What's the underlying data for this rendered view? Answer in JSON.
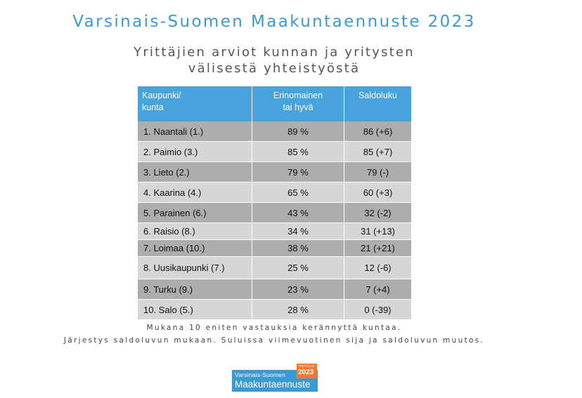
{
  "title": "Varsinais-Suomen Maakuntaennuste 2023",
  "subtitle": {
    "line1": "Yrittäjien arviot kunnan ja yritysten",
    "line2": "välisestä yhteistyöstä"
  },
  "table": {
    "headers": {
      "municipality": [
        "Kaupunki/",
        "kunta"
      ],
      "rating": [
        "Erinomainen",
        "tai hyvä"
      ],
      "balance": [
        "Saldoluku"
      ]
    },
    "rows": [
      {
        "name": "1. Naantali (1.)",
        "share": "89 %",
        "balance": "86 (+6)"
      },
      {
        "name": "2. Paimio (3.)",
        "share": "85 %",
        "balance": "85 (+7)"
      },
      {
        "name": "3. Lieto (2.)",
        "share": "79 %",
        "balance": "79 (-)"
      },
      {
        "name": "4. Kaarina (4.)",
        "share": "65 %",
        "balance": "60 (+3)"
      },
      {
        "name": "5. Parainen (6.)",
        "share": "43 %",
        "balance": "32 (-2)"
      },
      {
        "name": "6. Raisio (8.)",
        "share": "34 %",
        "balance": "31 (+13)"
      },
      {
        "name": "7. Loimaa (10.)",
        "share": "38 %",
        "balance": "21 (+21)"
      },
      {
        "name": "8. Uusikaupunki (7.)",
        "share": "25 %",
        "balance": "12 (-6)"
      },
      {
        "name": "9. Turku (9.)",
        "share": "23 %",
        "balance": "7 (+4)"
      },
      {
        "name": "10. Salo (5.)",
        "share": "28 %",
        "balance": "0 (-39)"
      }
    ]
  },
  "notes": {
    "line1": "Mukana 10 eniten vastauksia kerännyttä kuntaa.",
    "line2": "Järjestys saldoluvun mukaan. Suluissa viimevuotinen sija ja saldoluvun muutos."
  },
  "logo": {
    "top_line": "Varsinais-Suomen",
    "main_line": "Maakuntaennuste",
    "badge_caption": "YRITTÄJÄT",
    "badge_year": "2023"
  },
  "colors": {
    "title": "#3b9ad4",
    "header_bg": "#48a3dd",
    "row_dark": "#adadad",
    "row_light": "#d6d6d6",
    "badge": "#f07a36"
  }
}
